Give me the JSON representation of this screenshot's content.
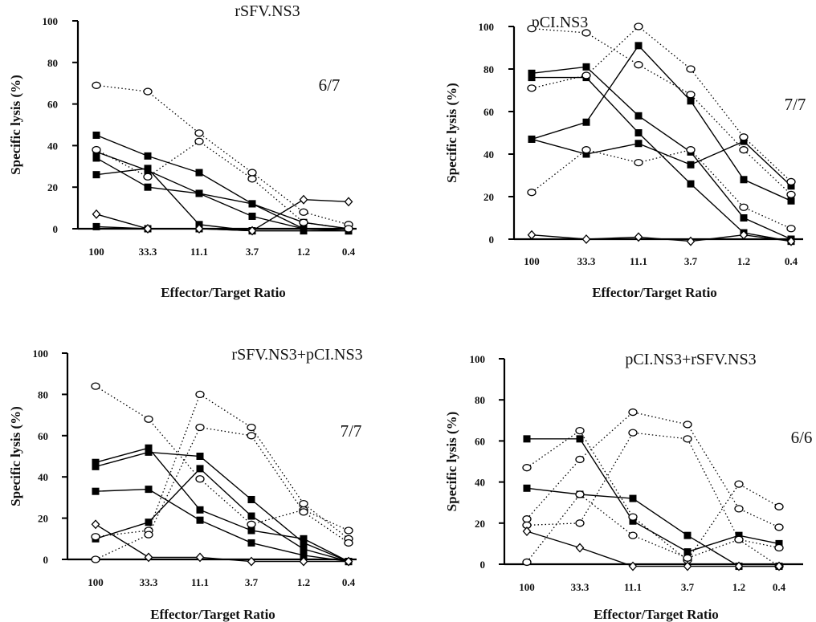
{
  "chart_data": [
    {
      "type": "line",
      "title": "rSFV.NS3",
      "ratio": "6/7",
      "xlabel": "Effector/Target Ratio",
      "ylabel": "Specific  lysis (%)",
      "categories": [
        "100",
        "33.3",
        "11.1",
        "3.7",
        "1.2",
        "0.4"
      ],
      "ylim": [
        0,
        100
      ],
      "yticks": [
        "0",
        "20",
        "40",
        "60",
        "80",
        "100"
      ],
      "series": [
        {
          "marker": "square",
          "style": "solid",
          "values": [
            45,
            35,
            27,
            12,
            3,
            0
          ]
        },
        {
          "marker": "square",
          "style": "solid",
          "values": [
            37,
            28,
            17,
            12,
            0,
            -1
          ]
        },
        {
          "marker": "square",
          "style": "solid",
          "values": [
            34,
            20,
            17,
            6,
            0,
            -1
          ]
        },
        {
          "marker": "square",
          "style": "solid",
          "values": [
            26,
            29,
            2,
            -1,
            -1,
            -1
          ]
        },
        {
          "marker": "square",
          "style": "solid",
          "values": [
            1,
            0,
            0,
            -1,
            -1,
            -1
          ]
        },
        {
          "marker": "circle",
          "style": "dotted",
          "values": [
            69,
            66,
            46,
            27,
            8,
            2
          ]
        },
        {
          "marker": "circle",
          "style": "dotted",
          "values": [
            38,
            25,
            42,
            24,
            3,
            0
          ]
        },
        {
          "marker": "diamond",
          "style": "solid",
          "values": [
            7,
            0,
            0,
            -1,
            14,
            13
          ]
        }
      ]
    },
    {
      "type": "line",
      "title": "pCI.NS3",
      "ratio": "7/7",
      "xlabel": "Effector/Target Ratio",
      "ylabel": "Specific  lysis (%)",
      "categories": [
        "100",
        "33.3",
        "11.1",
        "3.7",
        "1.2",
        "0.4"
      ],
      "ylim": [
        0,
        100
      ],
      "yticks": [
        "0",
        "20",
        "40",
        "60",
        "80",
        "100"
      ],
      "series": [
        {
          "marker": "square",
          "style": "solid",
          "values": [
            78,
            81,
            58,
            41,
            10,
            0
          ]
        },
        {
          "marker": "square",
          "style": "solid",
          "values": [
            76,
            76,
            50,
            26,
            3,
            -1
          ]
        },
        {
          "marker": "square",
          "style": "solid",
          "values": [
            47,
            55,
            91,
            65,
            28,
            18
          ]
        },
        {
          "marker": "square",
          "style": "solid",
          "values": [
            47,
            40,
            45,
            35,
            46,
            25
          ]
        },
        {
          "marker": "circle",
          "style": "dotted",
          "values": [
            99,
            97,
            82,
            68,
            42,
            21
          ]
        },
        {
          "marker": "circle",
          "style": "dotted",
          "values": [
            71,
            77,
            100,
            80,
            48,
            27
          ]
        },
        {
          "marker": "circle",
          "style": "dotted",
          "values": [
            22,
            42,
            36,
            42,
            15,
            5
          ]
        },
        {
          "marker": "diamond",
          "style": "solid",
          "values": [
            2,
            0,
            1,
            -1,
            2,
            -1
          ]
        }
      ]
    },
    {
      "type": "line",
      "title": "rSFV.NS3+pCI.NS3",
      "ratio": "7/7",
      "xlabel": "Effector/Target Ratio",
      "ylabel": "Specific  lysis (%)",
      "categories": [
        "100",
        "33.3",
        "11.1",
        "3.7",
        "1.2",
        "0.4"
      ],
      "ylim": [
        0,
        100
      ],
      "yticks": [
        "0",
        "20",
        "40",
        "60",
        "80",
        "100"
      ],
      "series": [
        {
          "marker": "square",
          "style": "solid",
          "values": [
            47,
            54,
            24,
            14,
            10,
            -1
          ]
        },
        {
          "marker": "square",
          "style": "solid",
          "values": [
            45,
            52,
            50,
            29,
            8,
            -1
          ]
        },
        {
          "marker": "square",
          "style": "solid",
          "values": [
            33,
            34,
            19,
            8,
            2,
            -1
          ]
        },
        {
          "marker": "square",
          "style": "solid",
          "values": [
            10,
            18,
            44,
            21,
            5,
            -1
          ]
        },
        {
          "marker": "circle",
          "style": "dotted",
          "values": [
            84,
            68,
            39,
            17,
            24,
            14
          ]
        },
        {
          "marker": "circle",
          "style": "dotted",
          "values": [
            11,
            14,
            80,
            64,
            27,
            10
          ]
        },
        {
          "marker": "circle",
          "style": "dotted",
          "values": [
            0,
            12,
            64,
            60,
            23,
            8
          ]
        },
        {
          "marker": "diamond",
          "style": "solid",
          "values": [
            17,
            1,
            1,
            -1,
            -1,
            -1
          ]
        }
      ]
    },
    {
      "type": "line",
      "title": "pCI.NS3+rSFV.NS3",
      "ratio": "6/6",
      "xlabel": "Effector/Target Ratio",
      "ylabel": "Specific  lysis (%)",
      "categories": [
        "100",
        "33.3",
        "11.1",
        "3.7",
        "1.2",
        "0.4"
      ],
      "ylim": [
        0,
        100
      ],
      "yticks": [
        "0",
        "20",
        "40",
        "60",
        "80",
        "100"
      ],
      "series": [
        {
          "marker": "square",
          "style": "solid",
          "values": [
            61,
            61,
            21,
            6,
            14,
            10
          ]
        },
        {
          "marker": "square",
          "style": "solid",
          "values": [
            37,
            34,
            32,
            14,
            -1,
            -1
          ]
        },
        {
          "marker": "circle",
          "style": "dotted",
          "values": [
            47,
            65,
            23,
            2,
            39,
            28
          ]
        },
        {
          "marker": "circle",
          "style": "dotted",
          "values": [
            22,
            51,
            74,
            68,
            27,
            18
          ]
        },
        {
          "marker": "circle",
          "style": "dotted",
          "values": [
            19,
            20,
            64,
            61,
            12,
            8
          ]
        },
        {
          "marker": "circle",
          "style": "dotted",
          "values": [
            1,
            34,
            14,
            3,
            12,
            -1
          ]
        },
        {
          "marker": "diamond",
          "style": "solid",
          "values": [
            16,
            8,
            -1,
            -1,
            -1,
            -1
          ]
        }
      ]
    }
  ]
}
